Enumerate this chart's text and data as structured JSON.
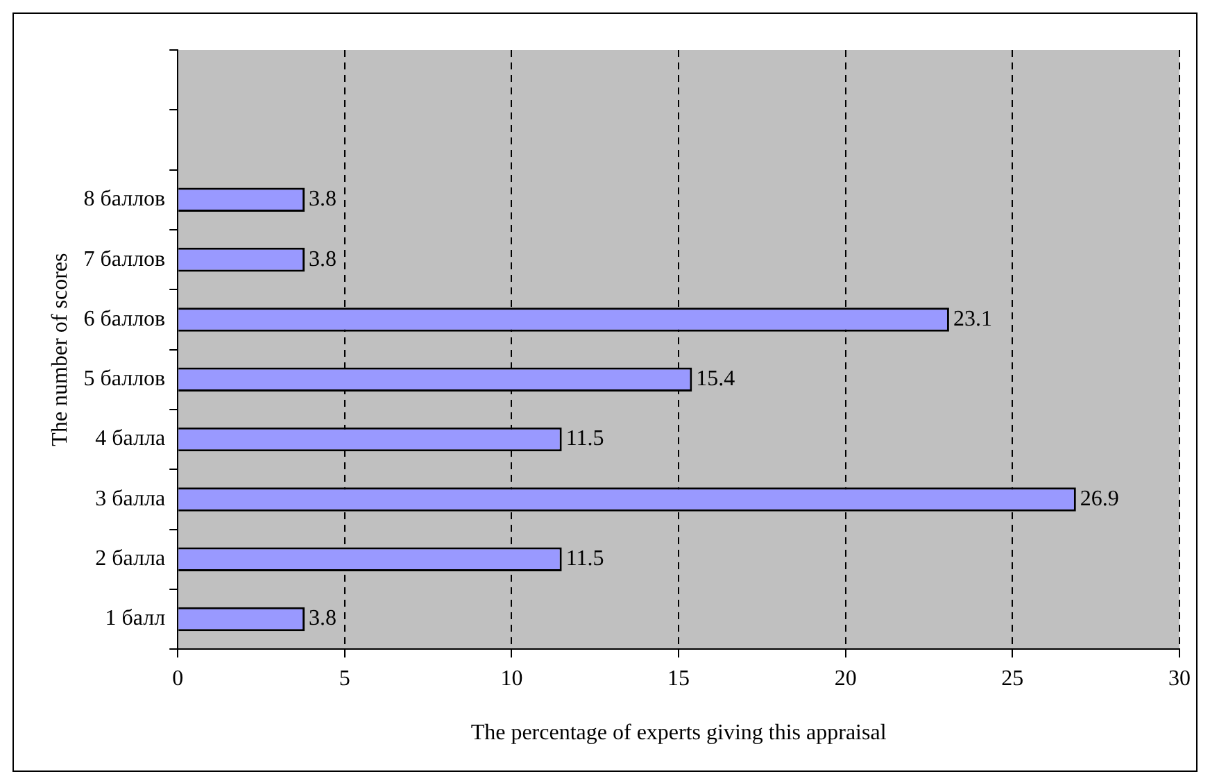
{
  "chart_data": {
    "type": "bar",
    "orientation": "horizontal",
    "xlabel": "The percentage of experts giving this appraisal",
    "ylabel": "The number of scores",
    "categories": [
      null,
      null,
      "8 баллов",
      "7 баллов",
      "6 баллов",
      "5 баллов",
      "4 балла",
      "3 балла",
      "2 балла",
      "1 балл"
    ],
    "values": [
      null,
      null,
      3.8,
      3.8,
      23.1,
      15.4,
      11.5,
      26.9,
      11.5,
      3.8
    ],
    "color": "#9999ff",
    "xlim": [
      0,
      30
    ],
    "xticks": [
      0,
      5,
      10,
      15,
      20,
      25,
      30
    ],
    "grid": "x",
    "data_labels": true
  }
}
